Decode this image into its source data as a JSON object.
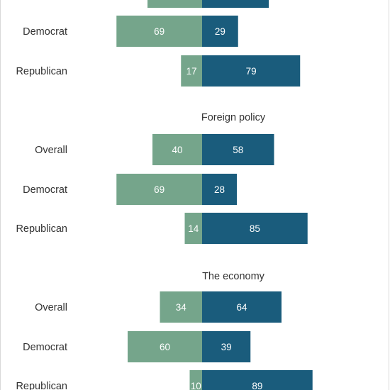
{
  "chart_data": {
    "type": "bar",
    "orientation": "horizontal-diverging",
    "colors": {
      "left_bar": "#75a58b",
      "right_bar": "#1a5c7c"
    },
    "groups": [
      {
        "title": "",
        "rows": [
          {
            "label": "",
            "left": null,
            "right": null
          },
          {
            "label": "Democrat",
            "left": 69,
            "right": 29
          },
          {
            "label": "Republican",
            "left": 17,
            "right": 79
          }
        ]
      },
      {
        "title": "Foreign policy",
        "rows": [
          {
            "label": "Overall",
            "left": 40,
            "right": 58
          },
          {
            "label": "Democrat",
            "left": 69,
            "right": 28
          },
          {
            "label": "Republican",
            "left": 14,
            "right": 85
          }
        ]
      },
      {
        "title": "The economy",
        "rows": [
          {
            "label": "Overall",
            "left": 34,
            "right": 64
          },
          {
            "label": "Democrat",
            "left": 60,
            "right": 39
          },
          {
            "label": "Republican",
            "left": 10,
            "right": 89
          }
        ]
      }
    ]
  }
}
